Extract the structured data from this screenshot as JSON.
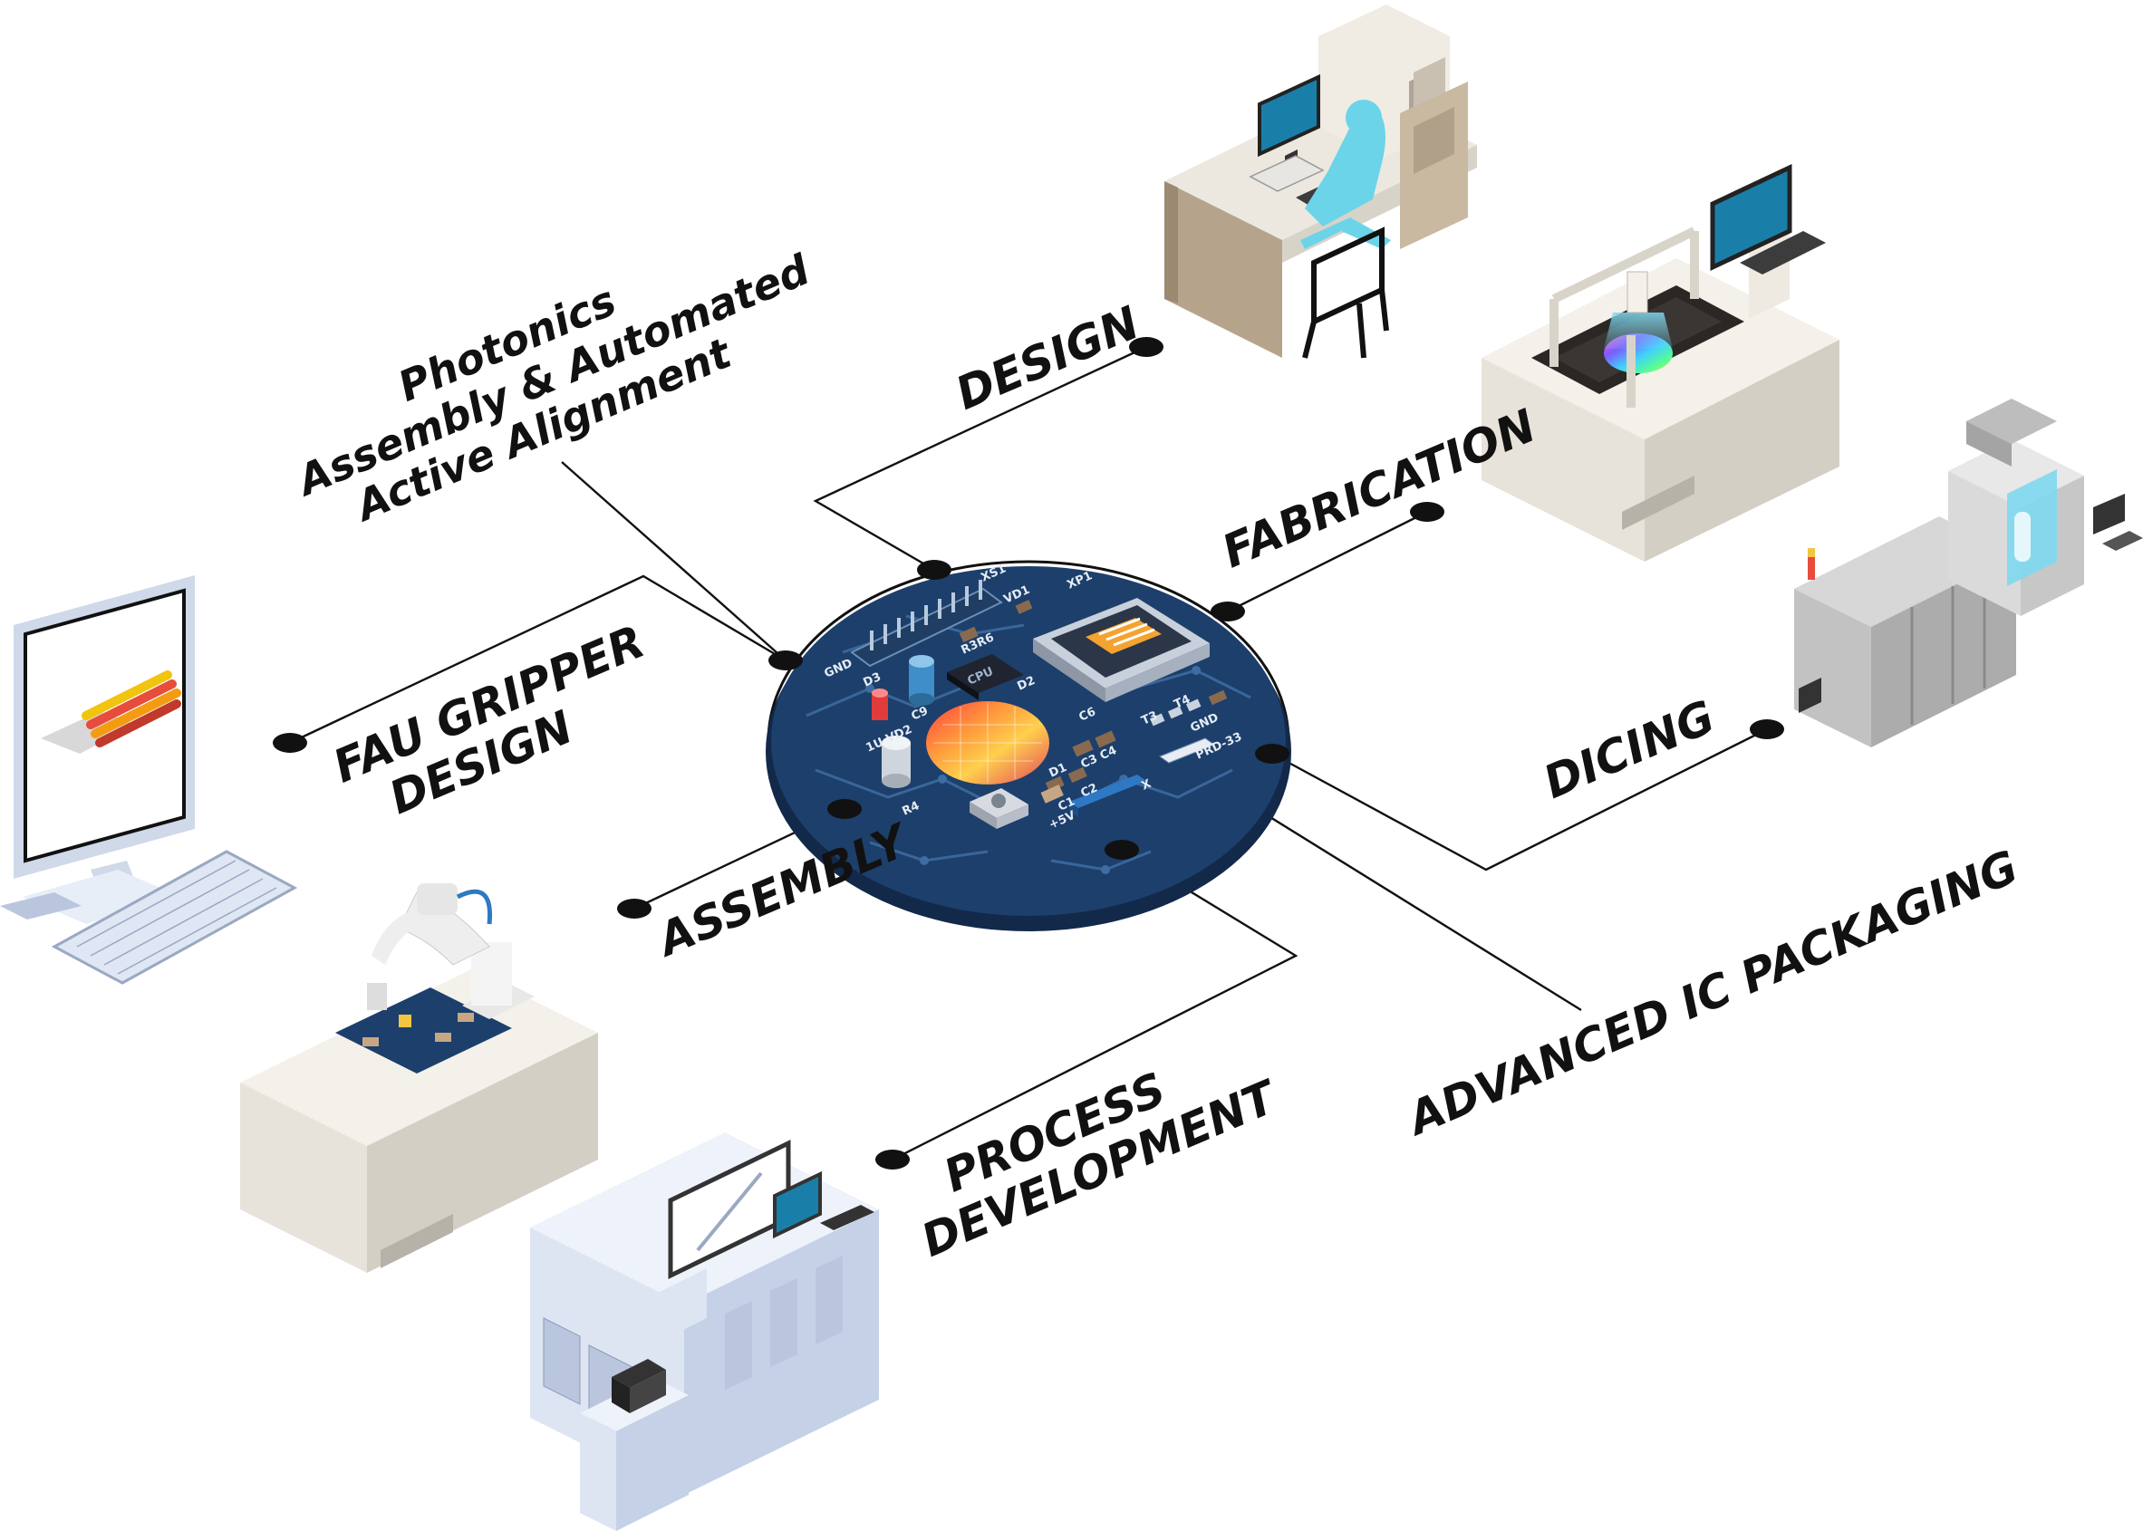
{
  "labels": {
    "photonics": [
      "Photonics",
      "Assembly & Automated",
      "Active Alignment"
    ],
    "design": "DESIGN",
    "fabrication": "FABRICATION",
    "fau_gripper": [
      "FAU GRIPPER",
      "DESIGN"
    ],
    "dicing": "DICING",
    "assembly": "ASSEMBLY",
    "advanced_ic": "ADVANCED IC PACKAGING",
    "process": [
      "PROCESS",
      "DEVELOPMENT"
    ]
  },
  "board_silkscreen": {
    "xs1": "XS1",
    "vd1": "VD1",
    "xp1": "XP1",
    "gnd": "GND",
    "d3": "D3",
    "r3r6": "R3R6",
    "cpu": "CPU",
    "d2": "D2",
    "c9": "C9",
    "c6": "C6",
    "t3": "T3",
    "t4": "T4",
    "gnd2": "GND",
    "v": "1U",
    "vd2": "VD2",
    "d1": "D1",
    "c3c4": "C3 C4",
    "c1": "C1",
    "c2": "C2",
    "r4": "R4",
    "x": "X",
    "prd": "PRD-33",
    "plus5v": "+5V"
  },
  "colors": {
    "board": "#1d3f6b",
    "board_edge": "#12294a",
    "trace": "#3f6da3",
    "ink": "#111111",
    "screen": "#1a7fa8",
    "device_light": "#e9e5dc",
    "device_shadow": "#cfcbc1",
    "machine_blue": "#dde5f3",
    "machine_blue_dark": "#b9c6de"
  }
}
